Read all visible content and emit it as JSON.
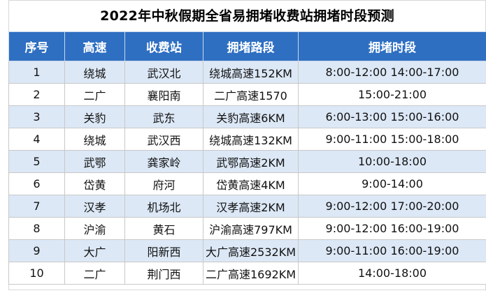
{
  "title": "2022年中秋假期全省易拥堵收费站拥堵时段预测",
  "headers": [
    "序号",
    "高速",
    "收费站",
    "拥堵路段",
    "拥堵时段"
  ],
  "rows": [
    [
      "1",
      "绕城",
      "武汉北",
      "绕城高速152KM",
      "8:00-12:00 14:00-17:00"
    ],
    [
      "2",
      "二广",
      "襄阳南",
      "二广高速1570",
      "15:00-21:00"
    ],
    [
      "3",
      "关豹",
      "武东",
      "关豹高速6KM",
      "6:00-13:00 15:00-16:00"
    ],
    [
      "4",
      "绕城",
      "武汉西",
      "绕城高速132KM",
      "9:00-11:00 15:00-18:00"
    ],
    [
      "5",
      "武鄂",
      "龚家岭",
      "武鄂高速2KM",
      "10:00-18:00"
    ],
    [
      "6",
      "岱黄",
      "府河",
      "岱黄高速4KM",
      "9:00-14:00"
    ],
    [
      "7",
      "汉孝",
      "机场北",
      "汉孝高速2KM",
      "9:00-12:00 17:00-20:00"
    ],
    [
      "8",
      "沪渝",
      "黄石",
      "沪渝高速797KM",
      "9:00-12:00 16:00-19:00"
    ],
    [
      "9",
      "大广",
      "阳新西",
      "大广高速2532KM",
      "9:00-11:00 16:00-19:00"
    ],
    [
      "10",
      "二广",
      "荆门西",
      "二广高速1692KM",
      "14:00-18:00"
    ]
  ],
  "colors": {
    "header_bg": "#2e6fc2",
    "alt_row_bg": "#dce8f6"
  }
}
